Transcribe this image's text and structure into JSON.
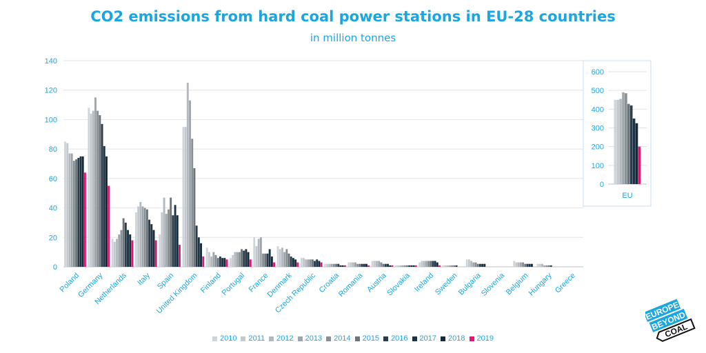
{
  "title": "CO2 emissions from hard coal power stations in EU-28 countries",
  "subtitle": "in million tonnes",
  "logo": {
    "line1": "EUROPE",
    "line2": "BEYOND",
    "line3": "COAL"
  },
  "colors": {
    "title": "#1aa6e0",
    "series": [
      "#d0d5da",
      "#c3c9ce",
      "#b3b9be",
      "#9fa6ab",
      "#878f94",
      "#6b747a",
      "#2c3d4a",
      "#1d3242",
      "#14293a",
      "#e3156f"
    ]
  },
  "chart_data": [
    {
      "type": "bar",
      "categories": [
        "Poland",
        "Germany",
        "Netherlands",
        "Italy",
        "Spain",
        "United Kingdom",
        "Finland",
        "Portugal",
        "France",
        "Denmark",
        "Czech Republic",
        "Croatia",
        "Romania",
        "Austria",
        "Slovakia",
        "Ireland",
        "Sweden",
        "Bulgaria",
        "Slovenia",
        "Belgium",
        "Hungary",
        "Greece"
      ],
      "ylim": [
        0,
        140
      ],
      "yticks": [
        "0",
        "20",
        "40",
        "60",
        "80",
        "100",
        "120",
        "140"
      ],
      "grid": true,
      "legend_position": "bottom",
      "series": [
        {
          "name": "2010",
          "values": [
            85,
            108,
            19,
            37,
            22,
            95,
            13,
            6,
            20,
            14,
            6,
            2,
            3,
            4,
            1,
            3,
            1,
            5,
            0,
            4,
            2,
            0
          ]
        },
        {
          "name": "2011",
          "values": [
            84,
            104,
            17,
            41,
            37,
            95,
            10,
            8,
            14,
            12,
            6,
            2,
            3,
            4,
            1,
            4,
            1,
            5,
            0,
            3,
            2,
            0
          ]
        },
        {
          "name": "2012",
          "values": [
            77,
            106,
            19,
            44,
            47,
            125,
            7,
            10,
            19,
            13,
            5,
            2,
            3,
            4,
            1,
            4,
            1,
            4,
            0,
            3,
            2,
            0
          ]
        },
        {
          "name": "2013",
          "values": [
            77,
            115,
            22,
            41,
            36,
            113,
            10,
            10,
            20,
            10,
            5,
            2,
            3,
            4,
            1,
            4,
            1,
            3,
            0,
            3,
            1,
            0
          ]
        },
        {
          "name": "2014",
          "values": [
            72,
            106,
            25,
            40,
            39,
            87,
            8,
            10,
            9,
            12,
            5,
            2,
            2,
            3,
            1,
            4,
            1,
            3,
            0,
            3,
            1,
            0
          ]
        },
        {
          "name": "2015",
          "values": [
            73,
            103,
            33,
            39,
            47,
            67,
            6,
            12,
            9,
            9,
            5,
            2,
            2,
            2,
            1,
            4,
            1,
            2,
            0,
            2,
            1,
            0
          ]
        },
        {
          "name": "2016",
          "values": [
            74,
            97,
            30,
            32,
            35,
            28,
            7,
            11,
            9,
            7,
            4,
            2,
            2,
            2,
            1,
            4,
            1,
            2,
            0,
            2,
            1,
            0
          ]
        },
        {
          "name": "2017",
          "values": [
            75,
            82,
            25,
            29,
            42,
            20,
            6,
            12,
            12,
            6,
            5,
            1,
            2,
            2,
            1,
            4,
            0,
            2,
            0,
            2,
            0,
            0
          ]
        },
        {
          "name": "2018",
          "values": [
            75,
            75,
            22,
            25,
            35,
            16,
            6,
            10,
            7,
            5,
            4,
            1,
            2,
            1,
            1,
            3,
            0,
            2,
            0,
            2,
            0,
            0
          ]
        },
        {
          "name": "2019",
          "values": [
            64,
            55,
            18,
            18,
            15,
            7,
            5,
            5,
            3,
            3,
            3,
            1,
            1,
            1,
            1,
            1,
            0,
            0,
            0,
            0,
            0,
            0
          ]
        }
      ]
    },
    {
      "type": "bar",
      "categories": [
        "EU"
      ],
      "ylim": [
        0,
        600
      ],
      "yticks": [
        "0",
        "100",
        "200",
        "300",
        "400",
        "500",
        "600"
      ],
      "grid": true,
      "series": [
        {
          "name": "2010",
          "values": [
            450
          ]
        },
        {
          "name": "2011",
          "values": [
            450
          ]
        },
        {
          "name": "2012",
          "values": [
            455
          ]
        },
        {
          "name": "2013",
          "values": [
            490
          ]
        },
        {
          "name": "2014",
          "values": [
            485
          ]
        },
        {
          "name": "2015",
          "values": [
            428
          ]
        },
        {
          "name": "2016",
          "values": [
            420
          ]
        },
        {
          "name": "2017",
          "values": [
            350
          ]
        },
        {
          "name": "2018",
          "values": [
            325
          ]
        },
        {
          "name": "2019",
          "values": [
            200
          ]
        }
      ]
    }
  ]
}
